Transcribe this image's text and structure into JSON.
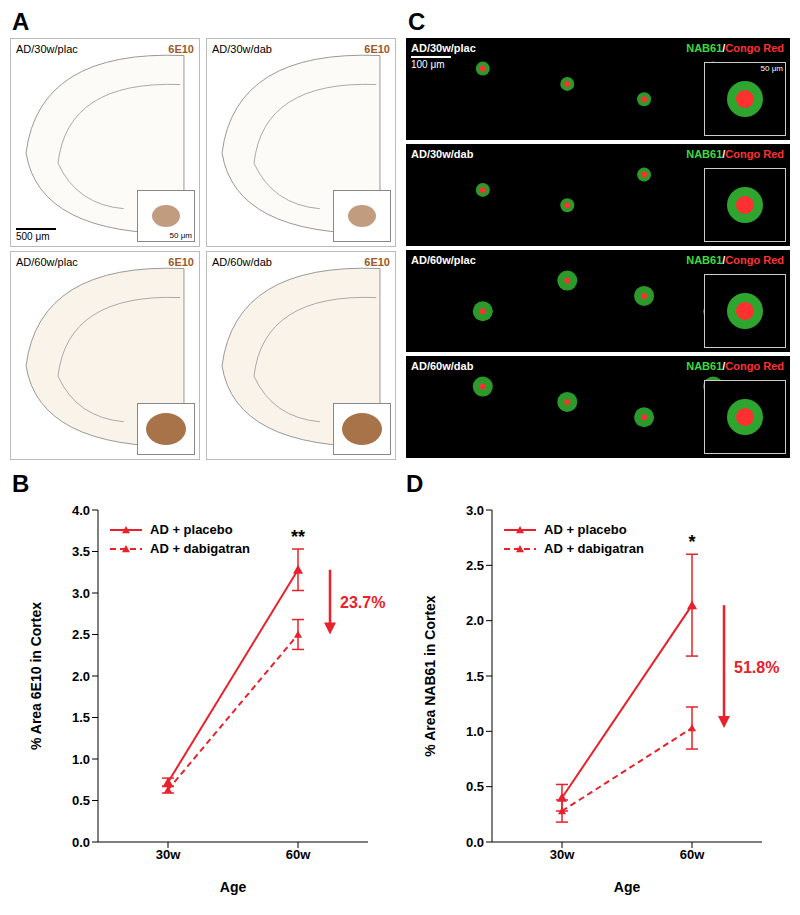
{
  "image_panels": [
    {
      "panel_label": "A",
      "images": [
        {
          "label": "AD/30w/plac",
          "stain": "6E10"
        },
        {
          "label": "AD/30w/dab",
          "stain": "6E10"
        },
        {
          "label": "AD/60w/plac",
          "stain": "6E10"
        },
        {
          "label": "AD/60w/dab",
          "stain": "6E10"
        }
      ],
      "stain_color": "#9a5a2a",
      "scale_bar": "500 μm",
      "inset_scale_bar": "50 μm"
    },
    {
      "panel_label": "C",
      "images": [
        {
          "label": "AD/30w/plac"
        },
        {
          "label": "AD/30w/dab"
        },
        {
          "label": "AD/60w/plac"
        },
        {
          "label": "AD/60w/dab"
        }
      ],
      "stains": [
        {
          "name": "NAB61",
          "color": "#3ddc3d"
        },
        {
          "name": "Congo Red",
          "color": "#ff3030"
        }
      ],
      "separator": "/",
      "scale_bar": "100 μm",
      "inset_scale_bar": "50 μm"
    }
  ],
  "chart_data": [
    {
      "type": "line",
      "panel_label": "B",
      "x_label": "Age",
      "y_label": "% Area 6E10 in Cortex",
      "categories": [
        "30w",
        "60w"
      ],
      "series": [
        {
          "name": "AD + placebo",
          "color": "#e8212b",
          "line_style": "solid",
          "marker": "triangle",
          "values": [
            0.72,
            3.28
          ],
          "errors": [
            0.05,
            0.25
          ]
        },
        {
          "name": "AD + dabigatran",
          "color": "#e8212b",
          "line_style": "dashed",
          "marker": "triangle",
          "values": [
            0.63,
            2.5
          ],
          "errors": [
            0.04,
            0.18
          ]
        }
      ],
      "ylim": [
        0,
        4
      ],
      "yticks": [
        {
          "value": 0,
          "label": "0.0"
        },
        {
          "value": 0.5,
          "label": "0.5"
        },
        {
          "value": 1,
          "label": "1.0"
        },
        {
          "value": 1.5,
          "label": "1.5"
        },
        {
          "value": 2,
          "label": "2.0"
        },
        {
          "value": 2.5,
          "label": "2.5"
        },
        {
          "value": 3,
          "label": "3.0"
        },
        {
          "value": 3.5,
          "label": "3.5"
        },
        {
          "value": 4,
          "label": "4.0"
        }
      ],
      "legend": "upper left",
      "annotations": [
        {
          "kind": "significance",
          "x": "60w",
          "text": "**"
        },
        {
          "kind": "arrow",
          "x": "60w",
          "text": "23.7%"
        }
      ]
    },
    {
      "type": "line",
      "panel_label": "D",
      "x_label": "Age",
      "y_label": "% Area NAB61 in Cortex",
      "categories": [
        "30w",
        "60w"
      ],
      "series": [
        {
          "name": "AD + placebo",
          "color": "#e8212b",
          "line_style": "solid",
          "marker": "triangle",
          "values": [
            0.4,
            2.14
          ],
          "errors": [
            0.12,
            0.46
          ]
        },
        {
          "name": "AD + dabigatran",
          "color": "#e8212b",
          "line_style": "dashed",
          "marker": "triangle",
          "values": [
            0.28,
            1.03
          ],
          "errors": [
            0.1,
            0.19
          ]
        }
      ],
      "ylim": [
        0,
        3
      ],
      "yticks": [
        {
          "value": 0,
          "label": "0.0"
        },
        {
          "value": 0.5,
          "label": "0.5"
        },
        {
          "value": 1,
          "label": "1.0"
        },
        {
          "value": 1.5,
          "label": "1.5"
        },
        {
          "value": 2,
          "label": "2.0"
        },
        {
          "value": 2.5,
          "label": "2.5"
        },
        {
          "value": 3,
          "label": "3.0"
        }
      ],
      "legend": "upper left",
      "annotations": [
        {
          "kind": "significance",
          "x": "60w",
          "text": "*"
        },
        {
          "kind": "arrow",
          "x": "60w",
          "text": "51.8%"
        }
      ]
    }
  ]
}
